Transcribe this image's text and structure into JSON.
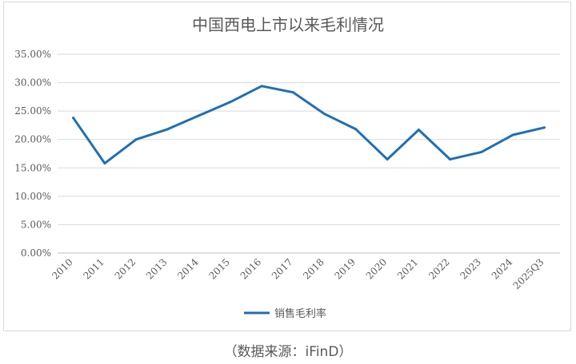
{
  "chart_data": {
    "type": "line",
    "title": "中国西电上市以来毛利情况",
    "categories": [
      "2010",
      "2011",
      "2012",
      "2013",
      "2014",
      "2015",
      "2016",
      "2017",
      "2018",
      "2019",
      "2020",
      "2021",
      "2022",
      "2023",
      "2024",
      "2025Q3"
    ],
    "series": [
      {
        "name": "销售毛利率",
        "values": [
          23.8,
          15.8,
          20.0,
          21.8,
          24.2,
          26.6,
          29.4,
          28.3,
          24.5,
          21.8,
          16.5,
          21.7,
          16.5,
          17.8,
          20.8,
          22.1
        ]
      }
    ],
    "yticks": [
      "35.00%",
      "30.00%",
      "25.00%",
      "20.00%",
      "15.00%",
      "10.00%",
      "5.00%",
      "0.00%"
    ],
    "ylim": [
      0,
      35
    ],
    "y_format": "percent_2dp",
    "grid": "horizontal",
    "legend_position": "bottom",
    "line_color": "#1f6fb5"
  },
  "source_note": "（数据来源：iFinD）"
}
